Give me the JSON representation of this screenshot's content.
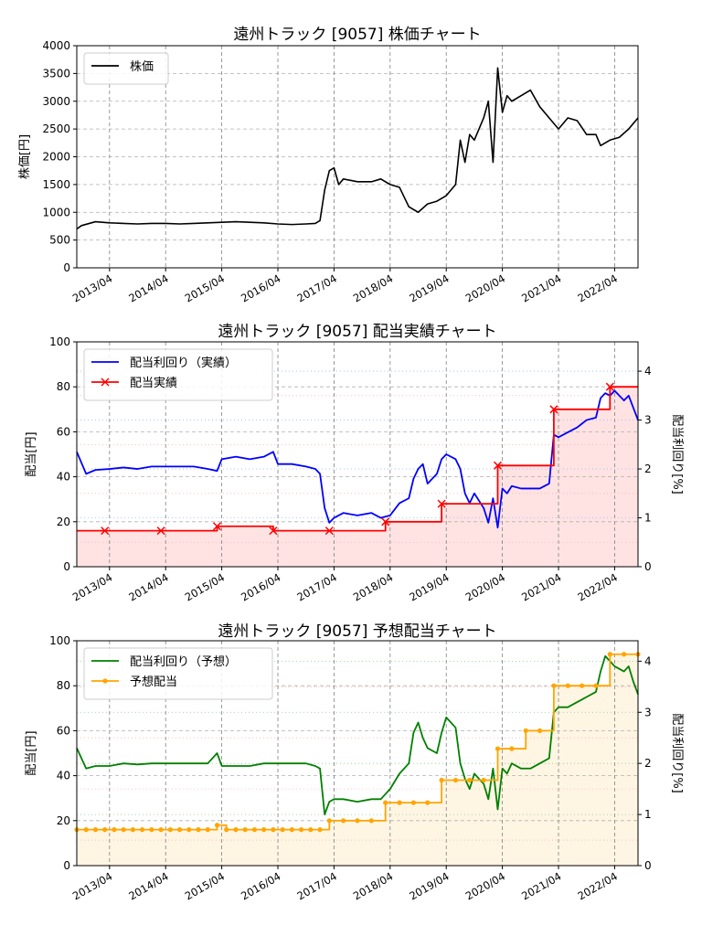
{
  "chart_data": [
    {
      "type": "line",
      "title": "遠州トラック [9057]  株価チャート",
      "ylabel": "株価[円]",
      "xlabel": "",
      "x_tick_labels": [
        "2013/04",
        "2014/04",
        "2015/04",
        "2016/04",
        "2017/04",
        "2018/04",
        "2019/04",
        "2020/04",
        "2021/04",
        "2022/04"
      ],
      "x_range": [
        "2012/09",
        "2022/09"
      ],
      "ylim": [
        0,
        4000
      ],
      "y_ticks": [
        0,
        500,
        1000,
        1500,
        2000,
        2500,
        3000,
        3500,
        4000
      ],
      "grid": true,
      "legend": "top-left",
      "series": [
        {
          "name": "株価",
          "color": "#000000",
          "x": [
            "2012/09",
            "2012/10",
            "2013/01",
            "2013/04",
            "2013/07",
            "2013/10",
            "2014/01",
            "2014/04",
            "2014/07",
            "2014/10",
            "2015/01",
            "2015/04",
            "2015/07",
            "2015/10",
            "2016/01",
            "2016/04",
            "2016/07",
            "2016/10",
            "2016/12",
            "2017/01",
            "2017/02",
            "2017/03",
            "2017/04",
            "2017/05",
            "2017/06",
            "2017/09",
            "2017/12",
            "2018/02",
            "2018/04",
            "2018/06",
            "2018/08",
            "2018/10",
            "2018/12",
            "2019/02",
            "2019/04",
            "2019/06",
            "2019/07",
            "2019/08",
            "2019/09",
            "2019/10",
            "2019/12",
            "2020/01",
            "2020/02",
            "2020/03",
            "2020/04",
            "2020/05",
            "2020/06",
            "2020/08",
            "2020/10",
            "2020/12",
            "2021/02",
            "2021/04",
            "2021/06",
            "2021/08",
            "2021/10",
            "2021/12",
            "2022/01",
            "2022/03",
            "2022/05",
            "2022/07",
            "2022/08",
            "2022/09"
          ],
          "values": [
            700,
            760,
            830,
            810,
            800,
            790,
            800,
            800,
            790,
            800,
            810,
            820,
            830,
            820,
            810,
            790,
            780,
            790,
            800,
            850,
            1400,
            1750,
            1800,
            1500,
            1600,
            1550,
            1550,
            1600,
            1500,
            1450,
            1100,
            1000,
            1150,
            1200,
            1300,
            1500,
            2300,
            1900,
            2400,
            2300,
            2700,
            3000,
            1900,
            3600,
            2800,
            3100,
            3000,
            3100,
            3200,
            2900,
            2700,
            2500,
            2700,
            2650,
            2400,
            2400,
            2200,
            2300,
            2350,
            2500,
            2600,
            2700
          ]
        }
      ]
    },
    {
      "type": "line",
      "title": "遠州トラック [9057]  配当実績チャート",
      "ylabel": "配当[円]",
      "y2label": "配当利回り[%]",
      "xlabel": "",
      "x_tick_labels": [
        "2013/04",
        "2014/04",
        "2015/04",
        "2016/04",
        "2017/04",
        "2018/04",
        "2019/04",
        "2020/04",
        "2021/04",
        "2022/04"
      ],
      "x_range": [
        "2012/09",
        "2022/09"
      ],
      "ylim": [
        0,
        100
      ],
      "y_ticks": [
        0,
        20,
        40,
        60,
        80,
        100
      ],
      "y2lim": [
        0,
        4.6
      ],
      "y2_ticks": [
        0,
        1,
        2,
        3,
        4
      ],
      "grid": true,
      "legend": "top-left",
      "series": [
        {
          "name": "配当利回り（実績）",
          "axis": "right",
          "color": "#0000ff",
          "x": [
            "2012/09",
            "2012/11",
            "2013/01",
            "2013/04",
            "2013/07",
            "2013/10",
            "2014/01",
            "2014/04",
            "2014/07",
            "2014/10",
            "2015/01",
            "2015/03",
            "2015/04",
            "2015/07",
            "2015/10",
            "2016/01",
            "2016/03",
            "2016/04",
            "2016/07",
            "2016/10",
            "2016/12",
            "2017/01",
            "2017/02",
            "2017/03",
            "2017/04",
            "2017/06",
            "2017/09",
            "2017/12",
            "2018/02",
            "2018/04",
            "2018/06",
            "2018/08",
            "2018/09",
            "2018/10",
            "2018/11",
            "2018/12",
            "2019/02",
            "2019/03",
            "2019/04",
            "2019/06",
            "2019/07",
            "2019/08",
            "2019/09",
            "2019/10",
            "2019/12",
            "2020/01",
            "2020/02",
            "2020/03",
            "2020/04",
            "2020/05",
            "2020/06",
            "2020/08",
            "2020/10",
            "2020/12",
            "2021/02",
            "2021/03",
            "2021/04",
            "2021/06",
            "2021/08",
            "2021/10",
            "2021/12",
            "2022/01",
            "2022/02",
            "2022/03",
            "2022/04",
            "2022/06",
            "2022/07",
            "2022/08",
            "2022/09"
          ],
          "values": [
            2.35,
            1.9,
            1.98,
            2.0,
            2.03,
            2.0,
            2.05,
            2.05,
            2.05,
            2.05,
            2.0,
            1.96,
            2.2,
            2.25,
            2.2,
            2.25,
            2.35,
            2.1,
            2.1,
            2.05,
            2.0,
            1.9,
            1.2,
            0.9,
            1.0,
            1.1,
            1.05,
            1.1,
            1.0,
            1.05,
            1.3,
            1.4,
            1.8,
            2.0,
            2.1,
            1.7,
            1.9,
            2.2,
            2.3,
            2.2,
            2.0,
            1.5,
            1.3,
            1.5,
            1.2,
            0.9,
            1.4,
            0.8,
            1.6,
            1.5,
            1.65,
            1.6,
            1.6,
            1.6,
            1.7,
            2.7,
            2.65,
            2.75,
            2.85,
            3.0,
            3.05,
            3.45,
            3.55,
            3.5,
            3.6,
            3.4,
            3.5,
            3.25,
            3.0
          ]
        },
        {
          "name": "配当実績",
          "axis": "left",
          "color": "#ff0000",
          "marker": "x",
          "x": [
            "2012/09",
            "2013/03",
            "2014/03",
            "2015/03",
            "2016/03",
            "2017/03",
            "2018/03",
            "2019/03",
            "2020/03",
            "2021/03",
            "2022/03",
            "2022/09"
          ],
          "values": [
            16,
            16,
            16,
            18,
            16,
            16,
            20,
            28,
            45,
            70,
            80,
            80
          ]
        }
      ]
    },
    {
      "type": "line",
      "title": "遠州トラック [9057]  予想配当チャート",
      "ylabel": "配当[円]",
      "y2label": "配当利回り[%]",
      "xlabel": "",
      "x_tick_labels": [
        "2013/04",
        "2014/04",
        "2015/04",
        "2016/04",
        "2017/04",
        "2018/04",
        "2019/04",
        "2020/04",
        "2021/04",
        "2022/04"
      ],
      "x_range": [
        "2012/09",
        "2022/09"
      ],
      "ylim": [
        0,
        100
      ],
      "y_ticks": [
        0,
        20,
        40,
        60,
        80,
        100
      ],
      "y2lim": [
        0,
        4.4
      ],
      "y2_ticks": [
        0,
        1,
        2,
        3,
        4
      ],
      "grid": true,
      "legend": "top-left",
      "series": [
        {
          "name": "配当利回り（予想）",
          "axis": "right",
          "color": "#008000",
          "x": [
            "2012/09",
            "2012/11",
            "2013/01",
            "2013/04",
            "2013/07",
            "2013/10",
            "2014/01",
            "2014/04",
            "2014/07",
            "2014/10",
            "2015/01",
            "2015/03",
            "2015/04",
            "2015/07",
            "2015/10",
            "2016/01",
            "2016/03",
            "2016/04",
            "2016/07",
            "2016/10",
            "2016/12",
            "2017/01",
            "2017/02",
            "2017/03",
            "2017/04",
            "2017/06",
            "2017/09",
            "2017/12",
            "2018/02",
            "2018/04",
            "2018/06",
            "2018/08",
            "2018/09",
            "2018/10",
            "2018/11",
            "2018/12",
            "2019/02",
            "2019/03",
            "2019/04",
            "2019/06",
            "2019/07",
            "2019/08",
            "2019/09",
            "2019/10",
            "2019/12",
            "2020/01",
            "2020/02",
            "2020/03",
            "2020/04",
            "2020/05",
            "2020/06",
            "2020/08",
            "2020/10",
            "2020/12",
            "2021/02",
            "2021/03",
            "2021/04",
            "2021/06",
            "2021/08",
            "2021/10",
            "2021/12",
            "2022/01",
            "2022/02",
            "2022/03",
            "2022/04",
            "2022/06",
            "2022/07",
            "2022/08",
            "2022/09"
          ],
          "values": [
            2.3,
            1.9,
            1.95,
            1.95,
            2.0,
            1.98,
            2.0,
            2.0,
            2.0,
            2.0,
            2.0,
            2.2,
            1.95,
            1.95,
            1.95,
            2.0,
            2.0,
            2.0,
            2.0,
            2.0,
            1.95,
            1.9,
            1.0,
            1.25,
            1.3,
            1.3,
            1.25,
            1.3,
            1.3,
            1.5,
            1.8,
            2.0,
            2.6,
            2.8,
            2.5,
            2.3,
            2.2,
            2.6,
            2.9,
            2.7,
            2.0,
            1.7,
            1.5,
            1.8,
            1.6,
            1.3,
            1.9,
            1.1,
            1.9,
            1.8,
            2.0,
            1.9,
            1.9,
            2.0,
            2.1,
            3.0,
            3.1,
            3.1,
            3.2,
            3.3,
            3.4,
            3.8,
            4.1,
            4.0,
            3.9,
            3.8,
            3.9,
            3.6,
            3.35
          ]
        },
        {
          "name": "予想配当",
          "axis": "left",
          "color": "#ffa500",
          "marker": "o",
          "x": [
            "2012/09",
            "2012/11",
            "2013/01",
            "2013/03",
            "2013/05",
            "2013/07",
            "2013/09",
            "2013/11",
            "2014/01",
            "2014/03",
            "2014/05",
            "2014/07",
            "2014/09",
            "2014/11",
            "2015/01",
            "2015/03",
            "2015/05",
            "2015/07",
            "2015/09",
            "2015/11",
            "2016/01",
            "2016/03",
            "2016/05",
            "2016/07",
            "2016/09",
            "2016/11",
            "2017/01",
            "2017/03",
            "2017/06",
            "2017/09",
            "2017/12",
            "2018/03",
            "2018/06",
            "2018/09",
            "2018/12",
            "2019/03",
            "2019/06",
            "2019/09",
            "2019/12",
            "2020/03",
            "2020/06",
            "2020/09",
            "2020/12",
            "2021/03",
            "2021/06",
            "2021/09",
            "2021/12",
            "2022/03",
            "2022/06",
            "2022/09"
          ],
          "values": [
            16,
            16,
            16,
            16,
            16,
            16,
            16,
            16,
            16,
            16,
            16,
            16,
            16,
            16,
            16,
            18,
            16,
            16,
            16,
            16,
            16,
            16,
            16,
            16,
            16,
            16,
            16,
            20,
            20,
            20,
            20,
            28,
            28,
            28,
            28,
            38,
            38,
            38,
            38,
            52,
            52,
            60,
            60,
            80,
            80,
            80,
            80,
            94,
            94,
            94
          ]
        }
      ]
    }
  ]
}
